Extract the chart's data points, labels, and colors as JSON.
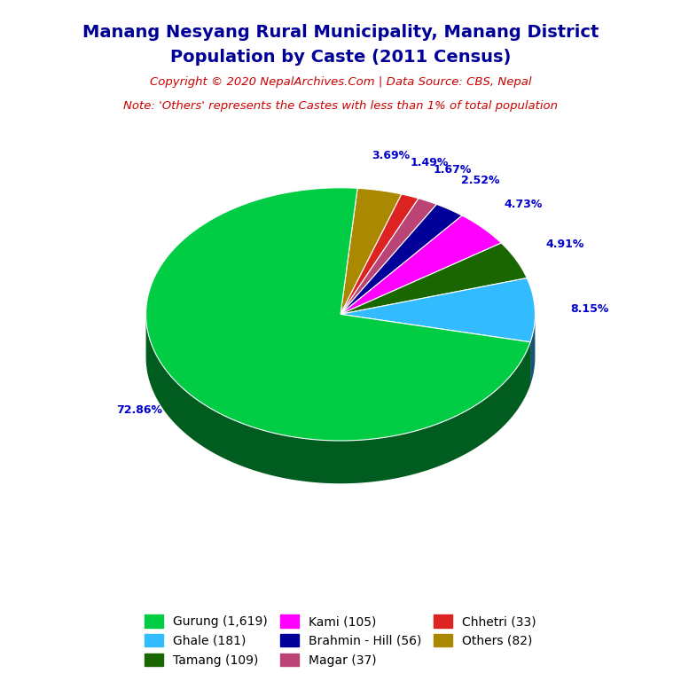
{
  "title_line1": "Manang Nesyang Rural Municipality, Manang District",
  "title_line2": "Population by Caste (2011 Census)",
  "copyright_text": "Copyright © 2020 NepalArchives.Com | Data Source: CBS, Nepal",
  "note_text": "Note: 'Others' represents the Castes with less than 1% of total population",
  "labels": [
    "Gurung (1,619)",
    "Ghale (181)",
    "Tamang (109)",
    "Kami (105)",
    "Brahmin - Hill (56)",
    "Magar (37)",
    "Chhetri (33)",
    "Others (82)"
  ],
  "values": [
    1619,
    181,
    109,
    105,
    56,
    37,
    33,
    82
  ],
  "percentages": [
    "72.86%",
    "8.15%",
    "4.91%",
    "4.73%",
    "2.52%",
    "1.67%",
    "1.49%",
    "3.69%"
  ],
  "colors": [
    "#00cc44",
    "#33bbff",
    "#1a6600",
    "#ff00ff",
    "#000099",
    "#bb4477",
    "#dd2222",
    "#aa8800"
  ],
  "title_color": "#000099",
  "copyright_color": "#cc0000",
  "note_color": "#cc0000",
  "pct_color": "#0000cc",
  "background_color": "#ffffff",
  "legend_order": [
    0,
    1,
    2,
    3,
    4,
    5,
    6,
    7
  ]
}
